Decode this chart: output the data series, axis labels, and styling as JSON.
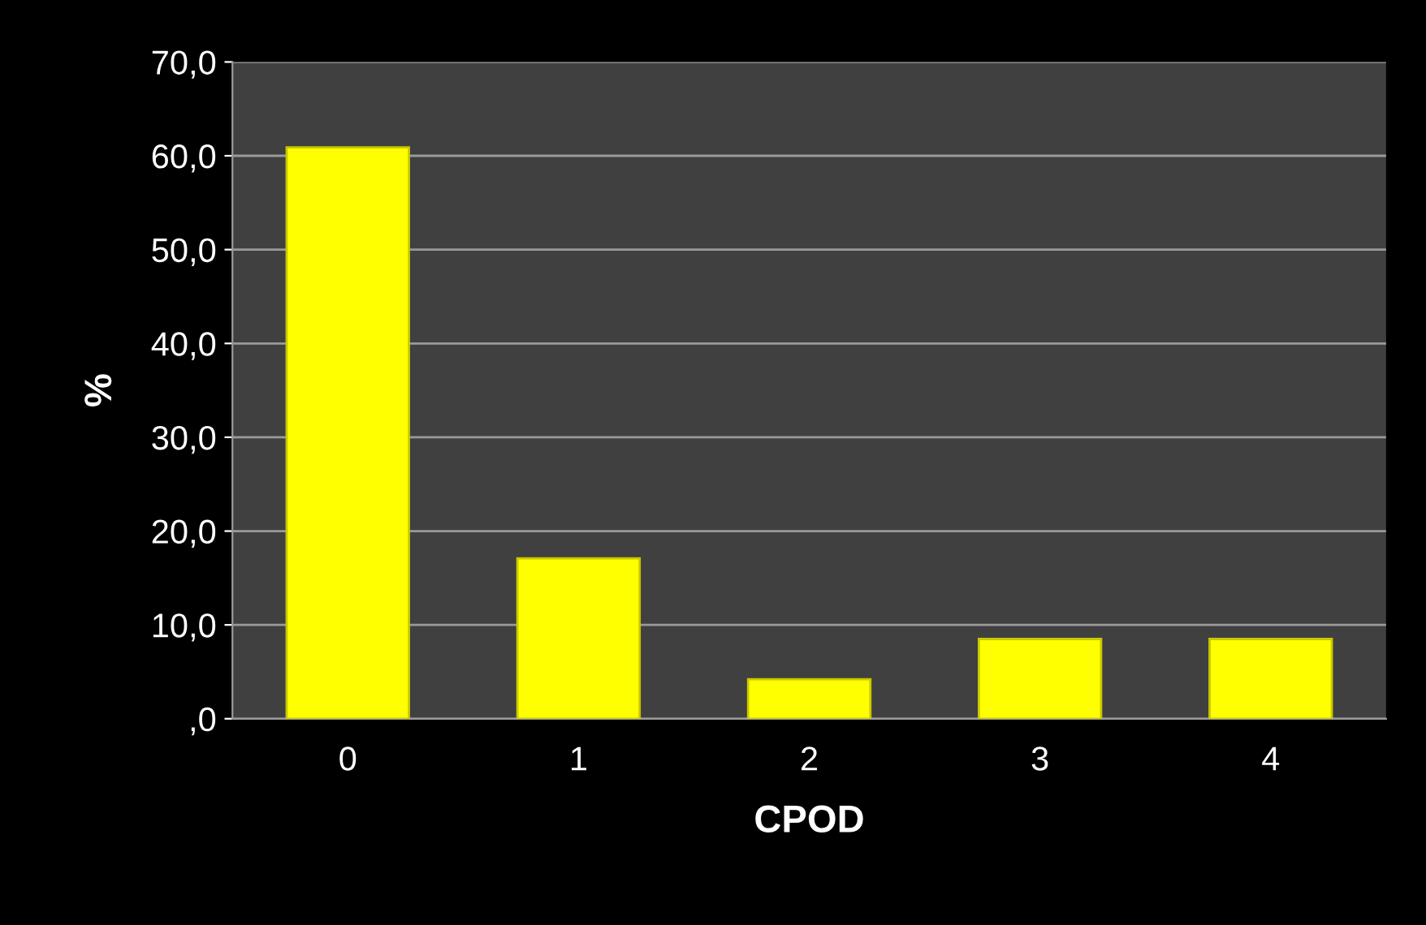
{
  "chart_data": {
    "type": "bar",
    "xlabel": "CPOD",
    "ylabel": "%",
    "categories": [
      "0",
      "1",
      "2",
      "3",
      "4"
    ],
    "values": [
      60.9,
      17.1,
      4.2,
      8.5,
      8.5
    ],
    "color": "#ffff00",
    "ylim": [
      0,
      70
    ],
    "yticks": [
      {
        "value": 0,
        "label": ",0"
      },
      {
        "value": 10,
        "label": "10,0"
      },
      {
        "value": 20,
        "label": "20,0"
      },
      {
        "value": 30,
        "label": "30,0"
      },
      {
        "value": 40,
        "label": "40,0"
      },
      {
        "value": 50,
        "label": "50,0"
      },
      {
        "value": 60,
        "label": "60,0"
      },
      {
        "value": 70,
        "label": "70,0"
      }
    ],
    "grid": "y",
    "legend": false
  }
}
